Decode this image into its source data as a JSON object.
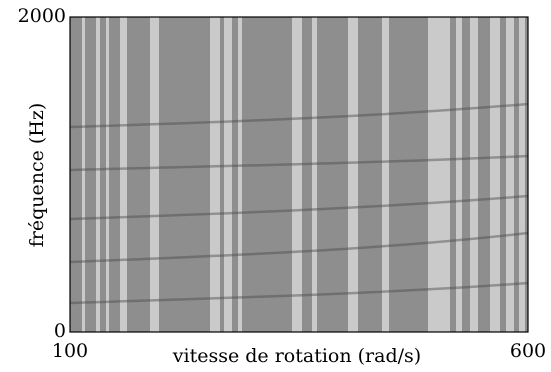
{
  "chart_data": {
    "type": "spectrogram",
    "x_label": "vitesse de rotation (rad/s)",
    "y_label": "fréquence (Hz)",
    "xlim": [
      100,
      600
    ],
    "xticks": [
      100,
      600
    ],
    "ylim": [
      0,
      2000
    ],
    "yticks": [
      0,
      2000
    ]
  }
}
